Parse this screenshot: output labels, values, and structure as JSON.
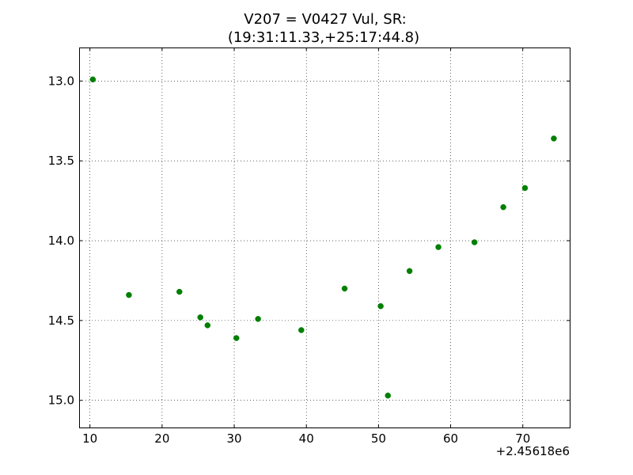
{
  "chart_data": {
    "type": "scatter",
    "title_line1": "V207 = V0427 Vul, SR:",
    "title_line2": "(19:31:11.33,+25:17:44.8)",
    "xlabel": "",
    "ylabel": "",
    "x_offset_label": "+2.45618e6",
    "xlim": [
      8.5,
      76.5
    ],
    "ylim": [
      15.17,
      12.79
    ],
    "y_inverted": true,
    "grid": true,
    "marker_color": "#007f00",
    "x_ticks": [
      10,
      20,
      30,
      40,
      50,
      60,
      70
    ],
    "x_tick_labels": [
      "10",
      "20",
      "30",
      "40",
      "50",
      "60",
      "70"
    ],
    "y_ticks": [
      13.0,
      13.5,
      14.0,
      14.5,
      15.0
    ],
    "y_tick_labels": [
      "13.0",
      "13.5",
      "14.0",
      "14.5",
      "15.0"
    ],
    "series": [
      {
        "x": [
          10.4,
          15.4,
          22.4,
          25.3,
          26.3,
          30.3,
          33.3,
          39.3,
          45.3,
          50.3,
          51.3,
          54.3,
          58.3,
          63.3,
          67.3,
          70.3,
          74.3
        ],
        "y": [
          12.99,
          14.34,
          14.32,
          14.48,
          14.53,
          14.61,
          14.49,
          14.56,
          14.3,
          14.41,
          14.97,
          14.19,
          14.04,
          14.01,
          13.79,
          13.67,
          13.36
        ]
      }
    ]
  }
}
